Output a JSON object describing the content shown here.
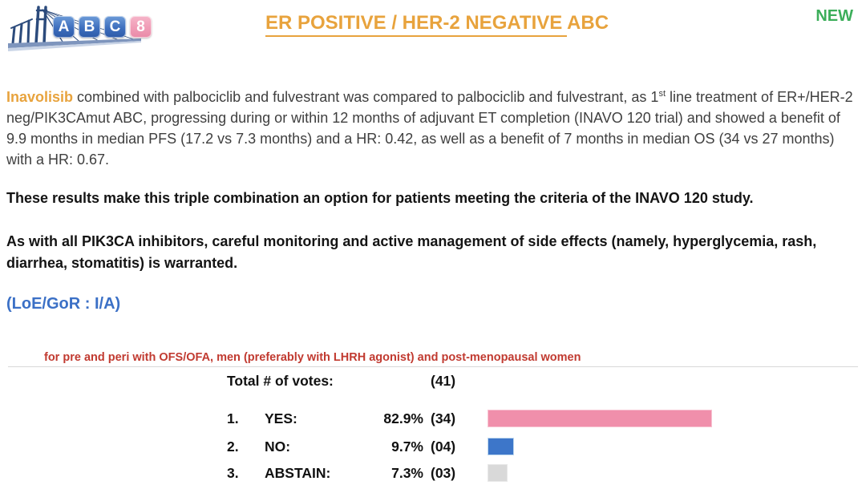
{
  "header": {
    "logo": {
      "letters": [
        "A",
        "B",
        "C"
      ],
      "number": "8",
      "description": "ABC 8 conference bridge logo"
    },
    "title": {
      "underlined": "ER POSITIVE / HER-2 NEGATIVE ",
      "suffix": "ABC"
    },
    "badge_new": "NEW"
  },
  "body": {
    "intro": {
      "drug_name": "Inavolisib",
      "text_before_sup": " combined with palbociclib and fulvestrant was compared to palbociclib and fulvestrant, as 1",
      "superscript": "st",
      "text_after_sup": " line treatment of ER+/HER-2 neg/PIK3CAmut ABC, progressing during or within 12 months of adjuvant ET completion (INAVO 120 trial) and showed a benefit of 9.9 months in median PFS (17.2 vs 7.3 months) and a HR: 0.42, as well as a benefit of 7 months in median OS (34 vs 27 months) with a HR: 0.67."
    },
    "statement_option": "These results make this triple combination an option for patients meeting the criteria of the INAVO 120 study.",
    "statement_safety": "As with all PIK3CA inhibitors, careful monitoring and active management of side effects (namely, hyperglycemia, rash, diarrhea, stomatitis) is warranted.",
    "loe_gor": "(LoE/GoR : I/A)",
    "population_note": "for pre and peri with OFS/OFA, men (preferably with LHRH agonist) and post-menopausal women"
  },
  "votes": {
    "total_label": "Total # of votes:",
    "total_count": "(41)",
    "rows": [
      {
        "rank": "1.",
        "label": "YES:",
        "pct_label": "82.9%",
        "pct": 82.9,
        "count": "(34)",
        "color": "#f08fab",
        "border": "#f8c3d2"
      },
      {
        "rank": "2.",
        "label": "NO:",
        "pct_label": "9.7%",
        "pct": 9.7,
        "count": "(04)",
        "color": "#3d76c9",
        "border": "#bdd7ee"
      },
      {
        "rank": "3.",
        "label": "ABSTAIN:",
        "pct_label": "7.3%",
        "pct": 7.3,
        "count": "(03)",
        "color": "#d9d9d9",
        "border": "#e8e8e8"
      }
    ]
  },
  "colors": {
    "title_orange": "#e8a33d",
    "new_green": "#3cae5a",
    "loe_blue": "#3b70c6",
    "note_red": "#c13a30",
    "body_gray": "#3f3f3f",
    "bar_yes_pink": "#f08fab",
    "bar_no_blue": "#3d76c9",
    "bar_abstain_gray": "#d9d9d9"
  }
}
